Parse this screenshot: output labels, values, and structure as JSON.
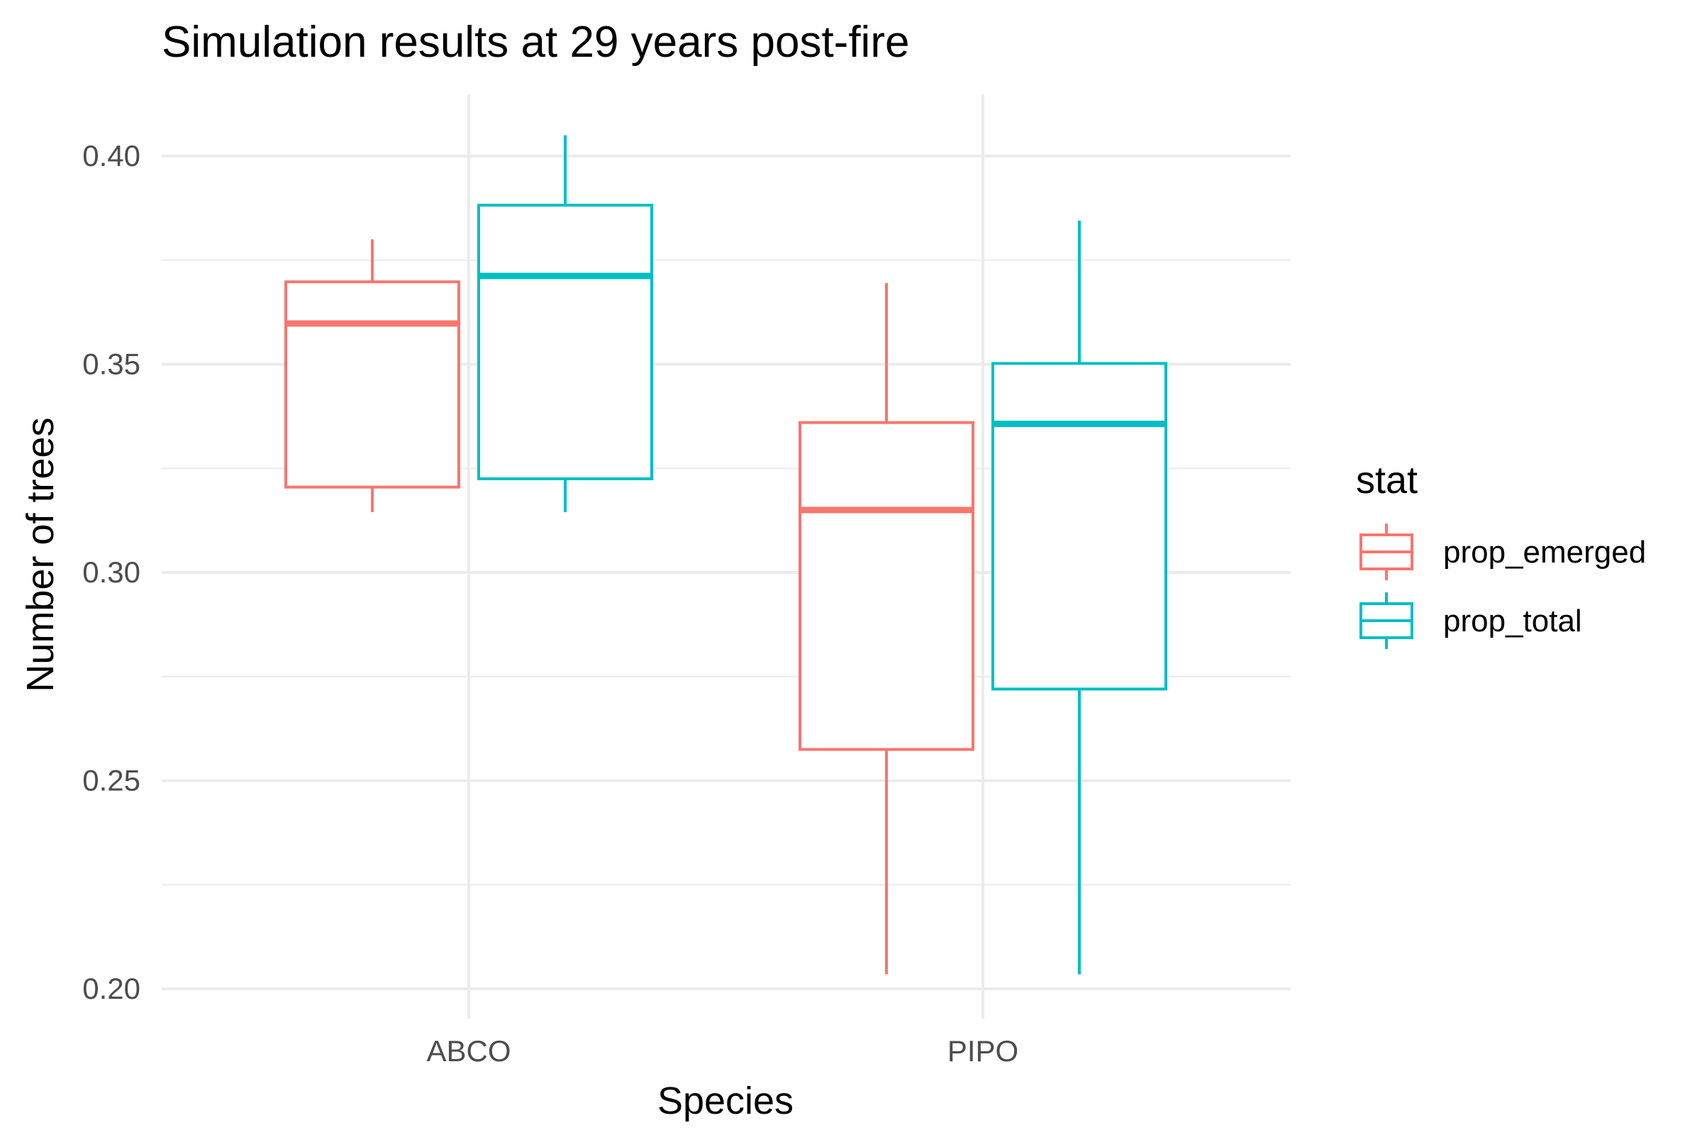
{
  "chart_data": {
    "type": "boxplot",
    "title": "Simulation results at 29 years post-fire",
    "xlabel": "Species",
    "ylabel": "Number of trees",
    "categories": [
      "ABCO",
      "PIPO"
    ],
    "ylim": [
      0.19,
      0.415
    ],
    "yticks": [
      0.2,
      0.25,
      0.3,
      0.35,
      0.4
    ],
    "ytick_labels": [
      "0.20",
      "0.25",
      "0.30",
      "0.35",
      "0.40"
    ],
    "grid": true,
    "legend": {
      "title": "stat",
      "position": "right"
    },
    "series": [
      {
        "name": "prop_emerged",
        "color": "#F8766D",
        "boxes": [
          {
            "category": "ABCO",
            "min": 0.3145,
            "q1": 0.3205,
            "median": 0.3598,
            "q3": 0.3698,
            "max": 0.38
          },
          {
            "category": "PIPO",
            "min": 0.2035,
            "q1": 0.2575,
            "median": 0.315,
            "q3": 0.336,
            "max": 0.3695
          }
        ]
      },
      {
        "name": "prop_total",
        "color": "#00BFC4",
        "boxes": [
          {
            "category": "ABCO",
            "min": 0.3145,
            "q1": 0.3225,
            "median": 0.3712,
            "q3": 0.3882,
            "max": 0.405
          },
          {
            "category": "PIPO",
            "min": 0.2035,
            "q1": 0.272,
            "median": 0.3357,
            "q3": 0.3502,
            "max": 0.3845
          }
        ]
      }
    ]
  }
}
